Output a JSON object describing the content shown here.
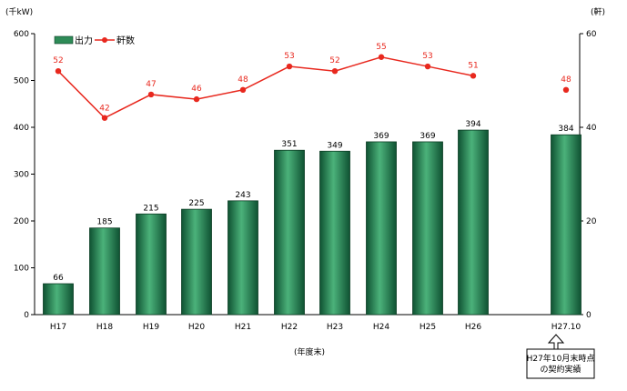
{
  "chart_data": {
    "type": "bar",
    "categories": [
      "H17",
      "H18",
      "H19",
      "H20",
      "H21",
      "H22",
      "H23",
      "H24",
      "H25",
      "H26",
      "H27.10"
    ],
    "series": [
      {
        "name": "出力",
        "type": "bar",
        "axis": "left",
        "color": "#2e8b57",
        "values": [
          66,
          185,
          215,
          225,
          243,
          351,
          349,
          369,
          369,
          394,
          384
        ]
      },
      {
        "name": "軒数",
        "type": "line",
        "axis": "right",
        "color": "#e8281e",
        "values": [
          52,
          42,
          47,
          46,
          48,
          53,
          52,
          55,
          53,
          51,
          48
        ],
        "connected_through": "H26"
      }
    ],
    "y_left": {
      "unit": "(千kW)",
      "range": [
        0,
        600
      ],
      "ticks": [
        "0",
        "100",
        "200",
        "300",
        "400",
        "500",
        "600"
      ]
    },
    "y_right": {
      "unit": "(軒)",
      "range": [
        0,
        60
      ],
      "ticks": [
        "0",
        "20",
        "40",
        "60"
      ]
    },
    "xlabel": "(年度末)",
    "legend": [
      "出力",
      "軒数"
    ],
    "legend_position": "top-left",
    "annotation": [
      "H27年10月末時点",
      "の契約実績"
    ],
    "grid": false
  }
}
